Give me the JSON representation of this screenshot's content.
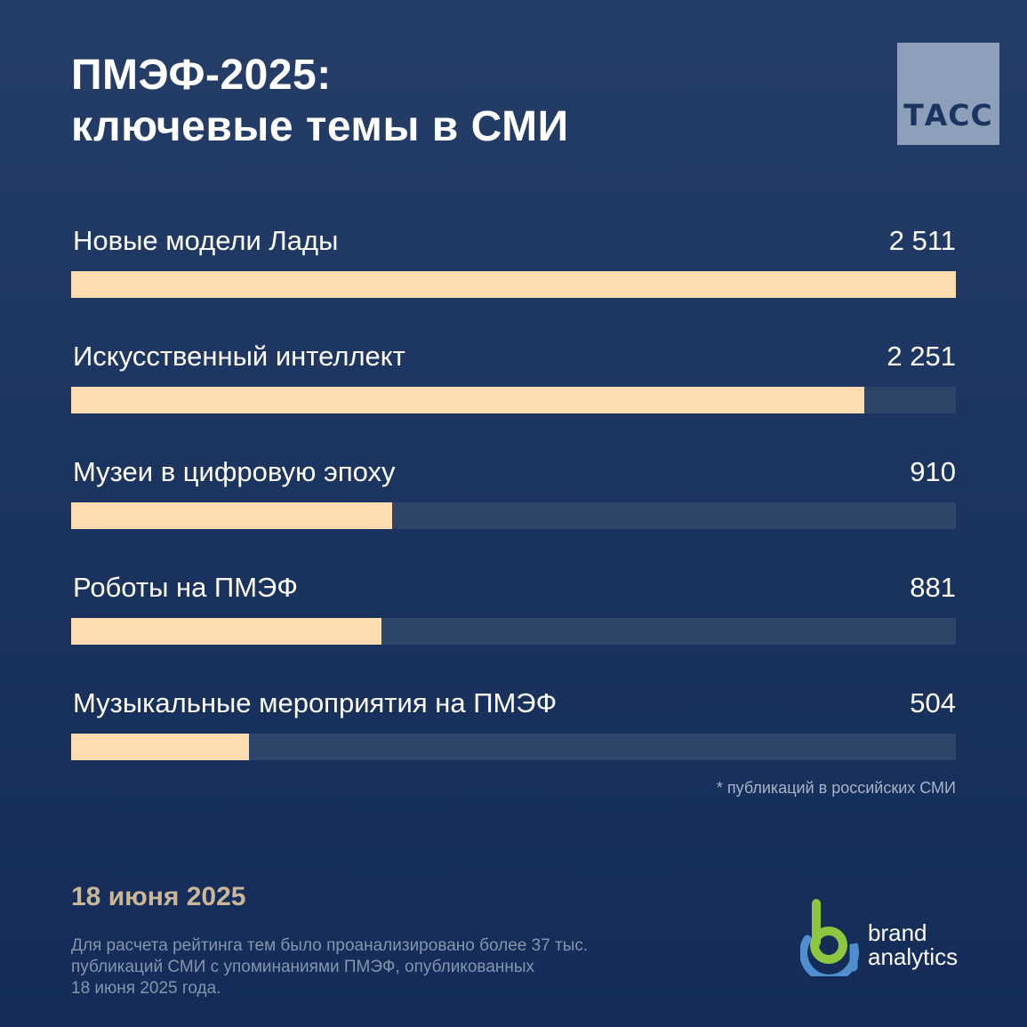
{
  "header": {
    "title_line1": "ПМЭФ-2025:",
    "title_line2": "ключевые темы в СМИ",
    "logo_text": "ТАСС"
  },
  "chart_data": {
    "type": "bar",
    "orientation": "horizontal",
    "categories": [
      "Новые модели Лады",
      "Искусственный интеллект",
      "Музеи в цифровую эпоху",
      "Роботы на ПМЭФ",
      "Музыкальные мероприятия на ПМЭФ"
    ],
    "values": [
      2511,
      2251,
      910,
      881,
      504
    ],
    "value_labels": [
      "2 511",
      "2 251",
      "910",
      "881",
      "504"
    ],
    "xlim": [
      0,
      2511
    ],
    "grid": false,
    "bar_color": "#fcdcb0",
    "track_color": "#2e4468"
  },
  "note": "* публикаций в российских СМИ",
  "date": "18 июня 2025",
  "footer": {
    "line1": "Для расчета рейтинга тем было проанализировано более 37 тыс.",
    "line2": "публикаций СМИ с упоминаниями ПМЭФ, опубликованных",
    "line3": "18 июня 2025 года."
  },
  "brand": {
    "line1": "brand",
    "line2": "analytics",
    "colors": {
      "green": "#8dc63f",
      "blue": "#4f8fd0"
    }
  },
  "colors": {
    "background": "#1c3560",
    "accent": "#fcdcb0",
    "date": "#cbb797"
  }
}
